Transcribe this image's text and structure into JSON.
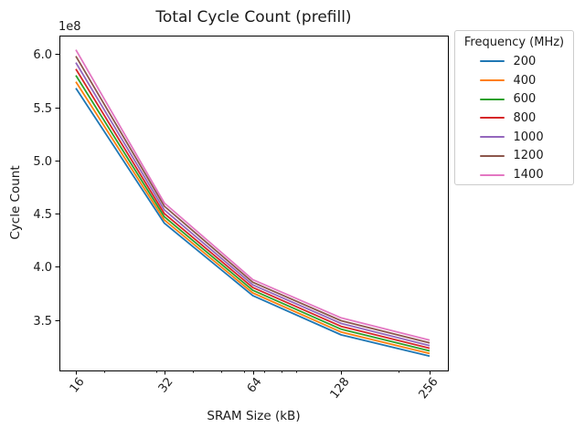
{
  "chart_data": {
    "type": "line",
    "title": "Total Cycle Count (prefill)",
    "xlabel": "SRAM Size (kB)",
    "ylabel": "Cycle Count",
    "y_offset_text": "1e8",
    "x_scale": "log",
    "x": [
      16,
      32,
      64,
      128,
      256
    ],
    "x_tick_labels": [
      "16",
      "32",
      "64",
      "128",
      "256"
    ],
    "x_minor_ticks": [
      20,
      30,
      40,
      50,
      60,
      70,
      80,
      90,
      200
    ],
    "y_ticks": [
      600000000,
      550000000,
      500000000,
      450000000,
      400000000,
      350000000
    ],
    "y_tick_labels": [
      "6.0",
      "5.5",
      "5.0",
      "4.5",
      "4.0",
      "3.5"
    ],
    "xlim": [
      14.1,
      295
    ],
    "ylim": [
      302600000,
      617400000
    ],
    "grid": false,
    "legend": {
      "title": "Frequency (MHz)",
      "position": "upper-right-outside"
    },
    "series": [
      {
        "name": "200",
        "color": "#1f77b4",
        "values": [
          568000000,
          441000000,
          373000000,
          336000000,
          316000000
        ]
      },
      {
        "name": "400",
        "color": "#ff7f0e",
        "values": [
          574000000,
          444000000,
          375500000,
          338700000,
          318500000
        ]
      },
      {
        "name": "600",
        "color": "#2ca02c",
        "values": [
          580000000,
          447000000,
          378000000,
          341300000,
          321000000
        ]
      },
      {
        "name": "800",
        "color": "#d62728",
        "values": [
          586000000,
          450000000,
          380500000,
          344000000,
          323500000
        ]
      },
      {
        "name": "1000",
        "color": "#9467bd",
        "values": [
          592000000,
          453500000,
          383000000,
          346700000,
          326000000
        ]
      },
      {
        "name": "1200",
        "color": "#8c564b",
        "values": [
          598000000,
          457000000,
          385500000,
          349300000,
          328500000
        ]
      },
      {
        "name": "1400",
        "color": "#e377c2",
        "values": [
          604000000,
          460000000,
          388000000,
          352000000,
          331000000
        ]
      }
    ]
  }
}
